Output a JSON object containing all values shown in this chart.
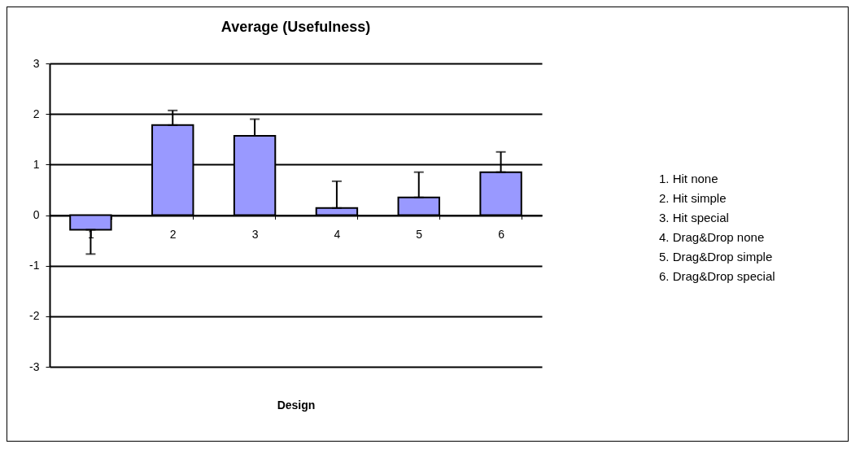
{
  "chart_data": {
    "type": "bar",
    "title": "Average (Usefulness)",
    "xlabel": "Design",
    "categories": [
      "1",
      "2",
      "3",
      "4",
      "5",
      "6"
    ],
    "values": [
      -0.29,
      1.78,
      1.57,
      0.14,
      0.35,
      0.85
    ],
    "errors": [
      [
        -0.77,
        -0.29
      ],
      [
        1.78,
        2.07
      ],
      [
        1.57,
        1.9
      ],
      [
        0.14,
        0.67
      ],
      [
        0.35,
        0.85
      ],
      [
        0.85,
        1.25
      ]
    ],
    "color": "#9999ff",
    "ylim": [
      -3,
      3
    ],
    "yticks": [
      -3,
      -2,
      -1,
      0,
      1,
      2,
      3
    ],
    "grid": "y",
    "annotations": [
      "1. Hit none",
      "2. Hit simple",
      "3. Hit special",
      "4. Drag&Drop none",
      "5. Drag&Drop simple",
      "6. Drag&Drop special"
    ]
  }
}
